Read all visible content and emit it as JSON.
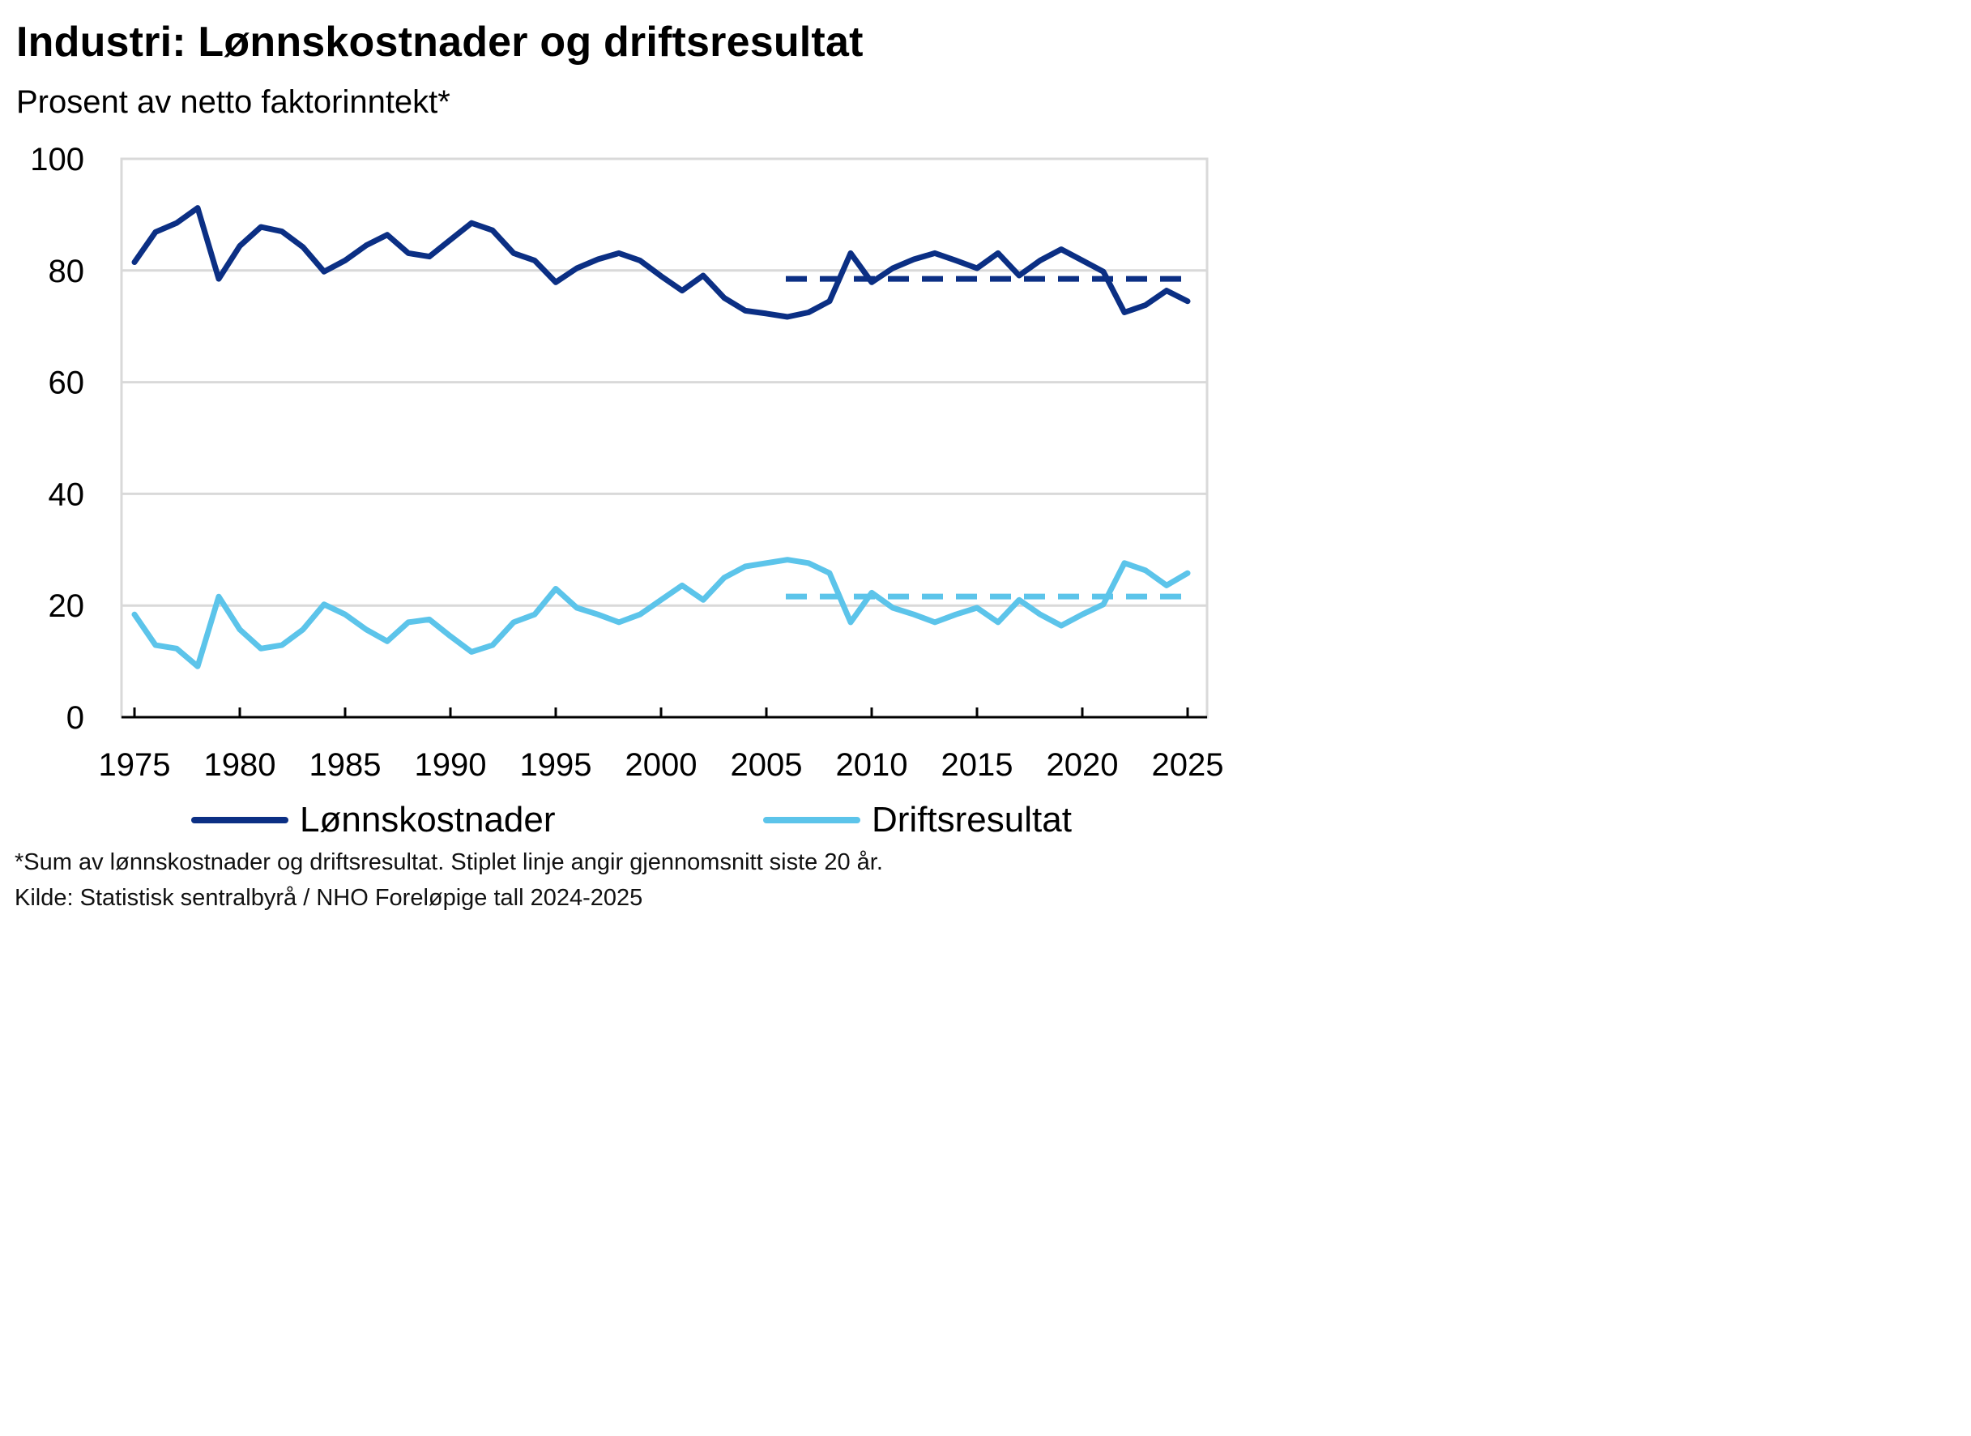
{
  "title": "Industri: Lønnskostnader og driftsresultat",
  "subtitle": "Prosent av netto faktorinntekt*",
  "legend": [
    {
      "label": "Lønnskostnader",
      "color": "#0b2f84"
    },
    {
      "label": "Driftsresultat",
      "color": "#5cc4ea"
    }
  ],
  "footnote": "*Sum av lønnskostnader og driftsresultat. Stiplet linje angir gjennomsnitt siste 20 år.",
  "source": "Kilde: Statistisk sentralbyrå / NHO   Foreløpige tall 2024-2025",
  "chart_data": {
    "type": "line",
    "title": "Industri: Lønnskostnader og driftsresultat",
    "ylabel": "Prosent av netto faktorinntekt*",
    "xlim": [
      1975,
      2025
    ],
    "ylim": [
      0,
      100
    ],
    "x_ticks": [
      1975,
      1980,
      1985,
      1990,
      1995,
      2000,
      2005,
      2010,
      2015,
      2020,
      2025
    ],
    "y_ticks": [
      0,
      20,
      40,
      60,
      80,
      100
    ],
    "grid": "horizontal",
    "legend_position": "bottom",
    "x": [
      1975,
      1976,
      1977,
      1978,
      1979,
      1980,
      1981,
      1982,
      1983,
      1984,
      1985,
      1986,
      1987,
      1988,
      1989,
      1990,
      1991,
      1992,
      1993,
      1994,
      1995,
      1996,
      1997,
      1998,
      1999,
      2000,
      2001,
      2002,
      2003,
      2004,
      2005,
      2006,
      2007,
      2008,
      2009,
      2010,
      2011,
      2012,
      2013,
      2014,
      2015,
      2016,
      2017,
      2018,
      2019,
      2020,
      2021,
      2022,
      2023,
      2024,
      2025
    ],
    "series": [
      {
        "name": "Lønnskostnader",
        "color": "#0b2f84",
        "values": [
          81.5,
          86.9,
          88.5,
          91.2,
          78.5,
          84.4,
          87.8,
          87.0,
          84.2,
          79.8,
          81.8,
          84.5,
          86.4,
          83.1,
          82.5,
          85.5,
          88.5,
          87.2,
          83.1,
          81.8,
          77.9,
          80.4,
          82.0,
          83.1,
          81.8,
          79.0,
          76.4,
          79.1,
          75.1,
          72.8,
          72.3,
          71.7,
          72.5,
          74.5,
          83.1,
          77.9,
          80.4,
          82.0,
          83.1,
          81.8,
          80.4,
          83.1,
          79.1,
          81.8,
          83.8,
          81.8,
          79.8,
          72.5,
          73.8,
          76.4,
          74.5
        ],
        "average": {
          "value": 78.5,
          "from": 2006,
          "to": 2025
        }
      },
      {
        "name": "Driftsresultat",
        "color": "#5cc4ea",
        "values": [
          18.4,
          12.9,
          12.3,
          9.1,
          21.6,
          15.7,
          12.3,
          12.9,
          15.7,
          20.2,
          18.4,
          15.7,
          13.6,
          17.0,
          17.5,
          14.5,
          11.7,
          12.9,
          17.0,
          18.4,
          23.0,
          19.6,
          18.4,
          17.0,
          18.4,
          21.0,
          23.6,
          21.0,
          25.0,
          27.0,
          27.6,
          28.2,
          27.6,
          25.8,
          17.0,
          22.3,
          19.6,
          18.4,
          17.0,
          18.4,
          19.6,
          17.0,
          21.0,
          18.4,
          16.4,
          18.4,
          20.2,
          27.6,
          26.3,
          23.6,
          25.8
        ],
        "average": {
          "value": 21.6,
          "from": 2006,
          "to": 2025
        }
      }
    ]
  }
}
